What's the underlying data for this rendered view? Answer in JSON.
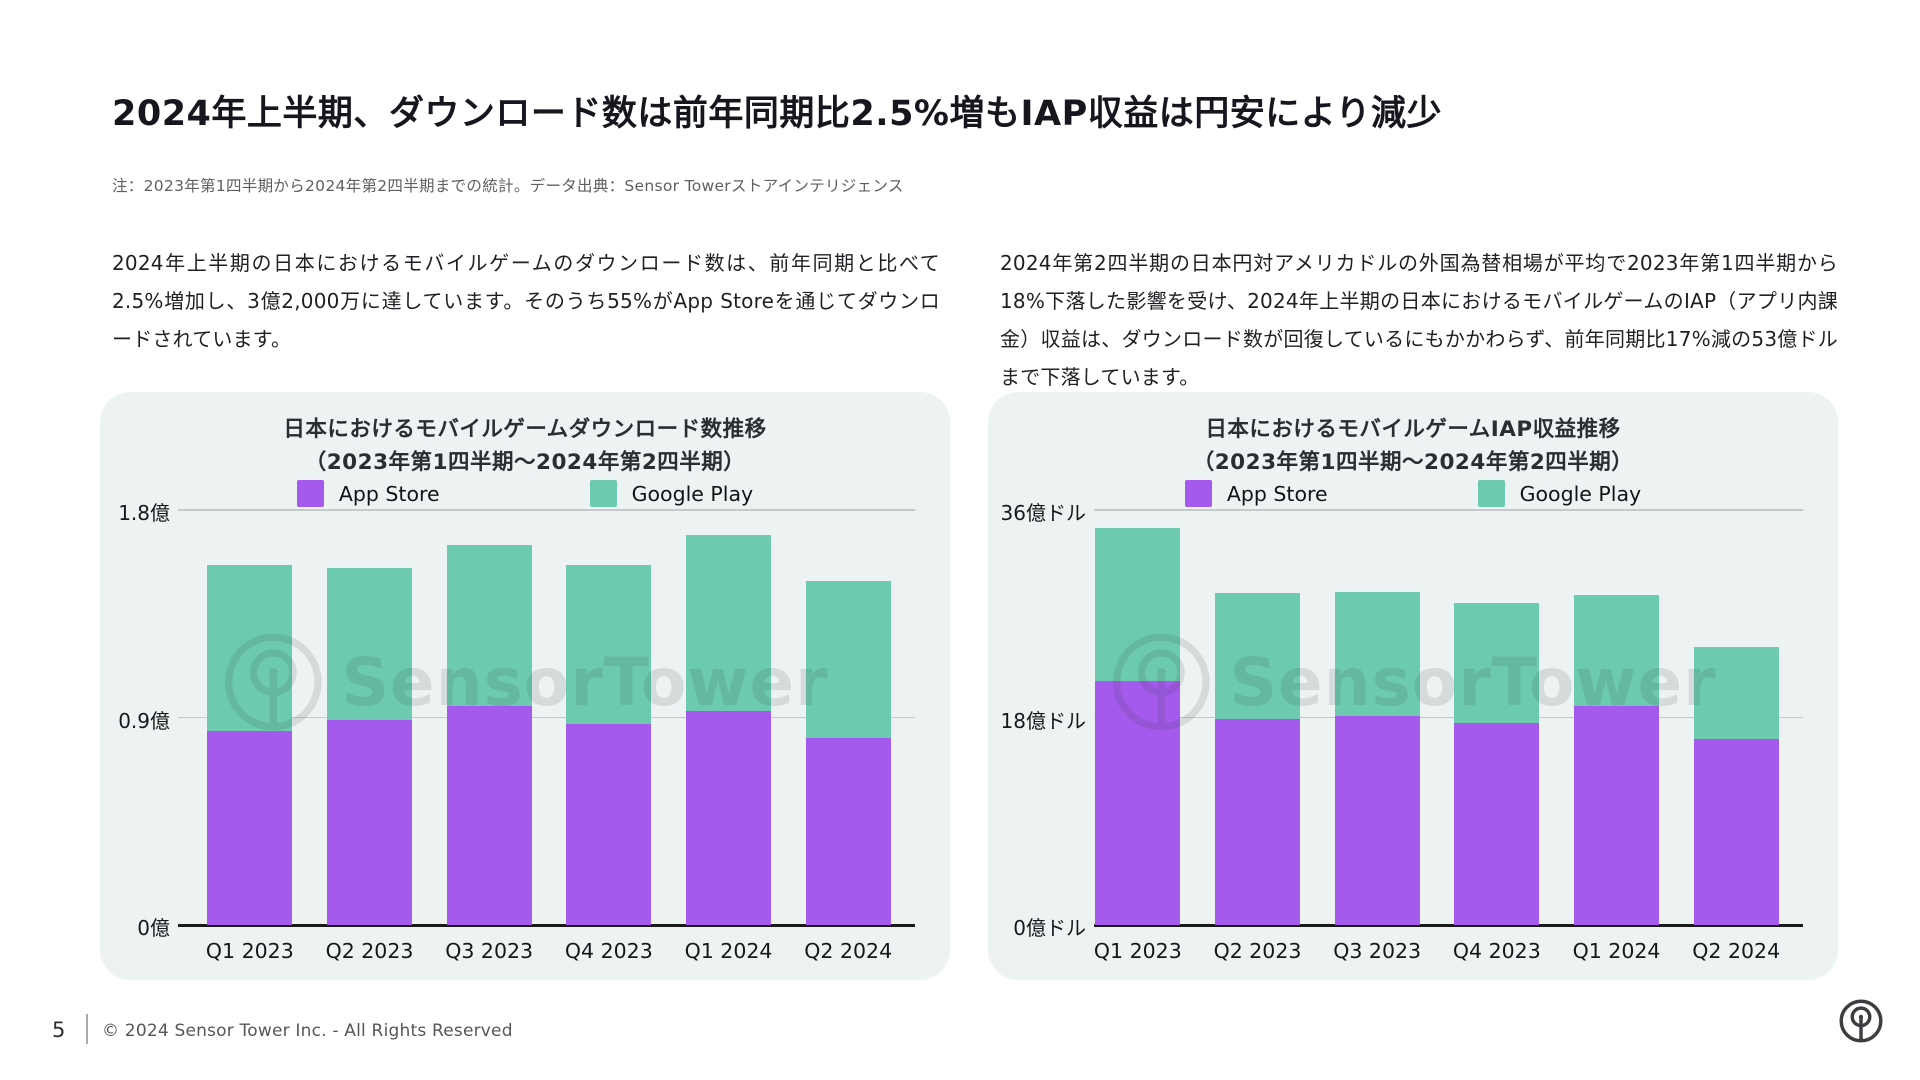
{
  "header": {
    "title": "2024年上半期、ダウンロード数は前年同期比2.5%増もIAP収益は円安により減少",
    "note": "注：2023年第1四半期から2024年第2四半期までの統計。データ出典：Sensor Towerストアインテリジェンス"
  },
  "paragraphs": {
    "left": "2024年上半期の日本におけるモバイルゲームのダウンロード数は、前年同期と比べて2.5%増加し、3億2,000万に達しています。そのうち55%がApp Storeを通じてダウンロードされています。",
    "right": "2024年第2四半期の日本円対アメリカドルの外国為替相場が平均で2023年第1四半期から18%下落した影響を受け、2024年上半期の日本におけるモバイルゲームのIAP（アプリ内課金）収益は、ダウンロード数が回復しているにもかかわらず、前年同期比17%減の53億ドルまで下落しています。"
  },
  "chart_data": [
    {
      "type": "bar",
      "stacked": true,
      "title": "日本におけるモバイルゲームダウンロード数推移（2023年第1四半期〜2024年第2四半期）",
      "title_lines": [
        "日本におけるモバイルゲームダウンロード数推移",
        "（2023年第1四半期〜2024年第2四半期）"
      ],
      "categories": [
        "Q1 2023",
        "Q2 2023",
        "Q3 2023",
        "Q4 2023",
        "Q1 2024",
        "Q2 2024"
      ],
      "series": [
        {
          "name": "App Store",
          "values": [
            0.84,
            0.89,
            0.95,
            0.87,
            0.93,
            0.81
          ]
        },
        {
          "name": "Google Play",
          "values": [
            0.72,
            0.66,
            0.7,
            0.69,
            0.76,
            0.68
          ]
        }
      ],
      "totals": [
        1.56,
        1.55,
        1.65,
        1.56,
        1.69,
        1.49
      ],
      "unit": "億",
      "ylim": [
        0,
        1.8
      ],
      "yticks": [
        "0億",
        "0.9億",
        "1.8億"
      ],
      "grid": true,
      "legend_position": "top"
    },
    {
      "type": "bar",
      "stacked": true,
      "title": "日本におけるモバイルゲームIAP収益推移（2023年第1四半期〜2024年第2四半期）",
      "title_lines": [
        "日本におけるモバイルゲームIAP収益推移",
        "（2023年第1四半期〜2024年第2四半期）"
      ],
      "categories": [
        "Q1 2023",
        "Q2 2023",
        "Q3 2023",
        "Q4 2023",
        "Q1 2024",
        "Q2 2024"
      ],
      "series": [
        {
          "name": "App Store",
          "values": [
            21.2,
            17.9,
            18.1,
            17.5,
            19.0,
            16.1
          ]
        },
        {
          "name": "Google Play",
          "values": [
            13.2,
            10.9,
            10.8,
            10.4,
            9.6,
            8.0
          ]
        }
      ],
      "totals": [
        34.4,
        28.8,
        28.9,
        27.9,
        28.6,
        24.1
      ],
      "unit": "億ドル",
      "ylim": [
        0,
        36
      ],
      "yticks": [
        "0億ドル",
        "18億ドル",
        "36億ドル"
      ],
      "grid": true,
      "legend_position": "top"
    }
  ],
  "watermark": {
    "text": "SensorTower"
  },
  "footer": {
    "page": "5",
    "copyright": "© 2024 Sensor Tower Inc. - All Rights Reserved"
  },
  "colors": {
    "app_store": "#A45AEC",
    "google_play": "#6CCAB0",
    "card_bg": "#EDF3F2",
    "gridline": "#C3CAC9",
    "axis": "#1A1A1A",
    "title_text": "#17161E"
  }
}
